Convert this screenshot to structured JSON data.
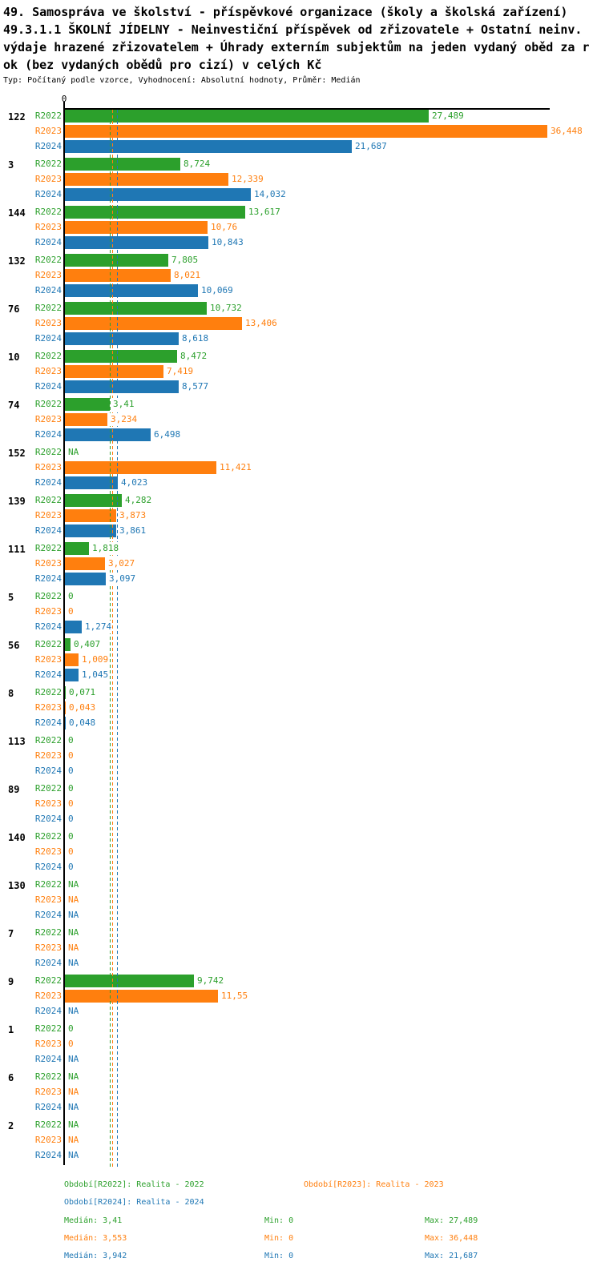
{
  "header": {
    "title_lines": [
      "49. Samospráva ve školství - příspěvkové organizace (školy a školská zařízení)",
      "49.3.1.1 ŠKOLNÍ JÍDELNY - Neinvestiční příspěvek od zřizovatele + Ostatní neinv.",
      "výdaje hrazené zřizovatelem + Úhrady externím subjektům na jeden vydaný oběd za r",
      "ok (bez vydaných obědů pro cizí) v celých Kč"
    ],
    "meta": "Typ: Počítaný podle vzorce, Vyhodnocení: Absolutní hodnoty, Průměr: Medián"
  },
  "axis": {
    "zero_label": "0"
  },
  "colors": {
    "r2022": "#2ca02c",
    "r2023": "#ff7f0e",
    "r2024": "#1f77b4",
    "axis": "#000000"
  },
  "legend": {
    "r2022": "Období[R2022]: Realita - 2022",
    "r2023": "Období[R2023]: Realita - 2023",
    "r2024": "Období[R2024]: Realita - 2024"
  },
  "stats": [
    {
      "series": "R2022",
      "median": "Medián: 3,41",
      "min": "Min: 0",
      "max": "Max: 27,489"
    },
    {
      "series": "R2023",
      "median": "Medián: 3,553",
      "min": "Min: 0",
      "max": "Max: 36,448"
    },
    {
      "series": "R2024",
      "median": "Medián: 3,942",
      "min": "Min: 0",
      "max": "Max: 21,687"
    }
  ],
  "chart_data": {
    "type": "bar",
    "orientation": "horizontal",
    "title": "49.3.1.1 ŠKOLNÍ JÍDELNY - Neinvestiční příspěvek od zřizovatele + Ostatní neinv. výdaje hrazené zřizovatelem + Úhrady externím subjektům na jeden vydaný oběd za rok (bez vydaných obědů pro cizí) v celých Kč",
    "value_unit": "Kč",
    "xlim": [
      0,
      36.448
    ],
    "grid": false,
    "legend_position": "bottom",
    "categories": [
      "122",
      "3",
      "144",
      "132",
      "76",
      "10",
      "74",
      "152",
      "139",
      "111",
      "5",
      "56",
      "8",
      "113",
      "89",
      "140",
      "130",
      "7",
      "9",
      "1",
      "6",
      "2"
    ],
    "series": [
      {
        "name": "R2022",
        "legend": "Realita - 2022",
        "color": "#2ca02c",
        "median": 3.41,
        "min": 0,
        "max": 27.489,
        "values": [
          27.489,
          8.724,
          13.617,
          7.805,
          10.732,
          8.472,
          3.41,
          null,
          4.282,
          1.818,
          0,
          0.407,
          0.071,
          0,
          0,
          0,
          null,
          null,
          9.742,
          0,
          null,
          null
        ],
        "labels": [
          "27,489",
          "8,724",
          "13,617",
          "7,805",
          "10,732",
          "8,472",
          "3,41",
          "NA",
          "4,282",
          "1,818",
          "0",
          "0,407",
          "0,071",
          "0",
          "0",
          "0",
          "NA",
          "NA",
          "9,742",
          "0",
          "NA",
          "NA"
        ]
      },
      {
        "name": "R2023",
        "legend": "Realita - 2023",
        "color": "#ff7f0e",
        "median": 3.553,
        "min": 0,
        "max": 36.448,
        "values": [
          36.448,
          12.339,
          10.76,
          8.021,
          13.406,
          7.419,
          3.234,
          11.421,
          3.873,
          3.027,
          0,
          1.009,
          0.043,
          0,
          0,
          0,
          null,
          null,
          11.55,
          0,
          null,
          null
        ],
        "labels": [
          "36,448",
          "12,339",
          "10,76",
          "8,021",
          "13,406",
          "7,419",
          "3,234",
          "11,421",
          "3,873",
          "3,027",
          "0",
          "1,009",
          "0,043",
          "0",
          "0",
          "0",
          "NA",
          "NA",
          "11,55",
          "0",
          "NA",
          "NA"
        ]
      },
      {
        "name": "R2024",
        "legend": "Realita - 2024",
        "color": "#1f77b4",
        "median": 3.942,
        "min": 0,
        "max": 21.687,
        "values": [
          21.687,
          14.032,
          10.843,
          10.069,
          8.618,
          8.577,
          6.498,
          4.023,
          3.861,
          3.097,
          1.274,
          1.045,
          0.048,
          0,
          0,
          0,
          null,
          null,
          null,
          null,
          null,
          null
        ],
        "labels": [
          "21,687",
          "14,032",
          "10,843",
          "10,069",
          "8,618",
          "8,577",
          "6,498",
          "4,023",
          "3,861",
          "3,097",
          "1,274",
          "1,045",
          "0,048",
          "0",
          "0",
          "0",
          "NA",
          "NA",
          "NA",
          "NA",
          "NA",
          "NA"
        ]
      }
    ]
  }
}
